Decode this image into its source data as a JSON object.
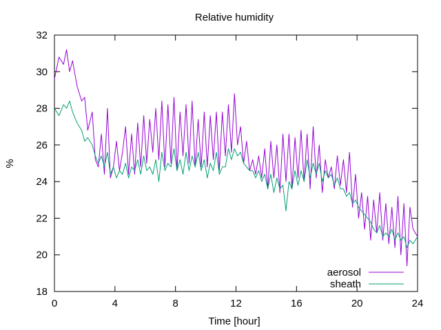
{
  "chart_data": {
    "type": "line",
    "title": "Relative humidity",
    "xlabel": "Time [hour]",
    "ylabel": "%",
    "xlim": [
      0,
      24
    ],
    "ylim": [
      18,
      32
    ],
    "xticks": [
      0,
      4,
      8,
      12,
      16,
      20,
      24
    ],
    "yticks": [
      18,
      20,
      22,
      24,
      26,
      28,
      30,
      32
    ],
    "grid": false,
    "legend_position": "bottom-right",
    "series": [
      {
        "name": "aerosol",
        "color": "#9400d3",
        "x": [
          0,
          0.3,
          0.6,
          0.8,
          1.0,
          1.2,
          1.5,
          1.8,
          2.0,
          2.2,
          2.5,
          2.7,
          2.9,
          3.1,
          3.3,
          3.5,
          3.7,
          3.9,
          4.1,
          4.3,
          4.5,
          4.7,
          4.9,
          5.1,
          5.3,
          5.5,
          5.7,
          5.9,
          6.1,
          6.3,
          6.5,
          6.7,
          6.9,
          7.1,
          7.3,
          7.5,
          7.7,
          7.9,
          8.1,
          8.3,
          8.5,
          8.7,
          8.9,
          9.1,
          9.3,
          9.5,
          9.7,
          9.9,
          10.1,
          10.3,
          10.5,
          10.7,
          10.9,
          11.1,
          11.3,
          11.5,
          11.7,
          11.9,
          12.1,
          12.3,
          12.5,
          12.7,
          12.9,
          13.1,
          13.3,
          13.5,
          13.7,
          13.9,
          14.1,
          14.3,
          14.5,
          14.7,
          14.9,
          15.1,
          15.3,
          15.5,
          15.7,
          15.9,
          16.1,
          16.3,
          16.5,
          16.7,
          16.9,
          17.1,
          17.3,
          17.5,
          17.7,
          17.9,
          18.1,
          18.3,
          18.5,
          18.7,
          18.9,
          19.1,
          19.3,
          19.5,
          19.7,
          19.9,
          20.1,
          20.3,
          20.5,
          20.7,
          20.9,
          21.1,
          21.3,
          21.5,
          21.7,
          21.9,
          22.1,
          22.3,
          22.5,
          22.7,
          22.9,
          23.1,
          23.3,
          23.5,
          23.7,
          24.0
        ],
        "y": [
          29.6,
          30.8,
          30.4,
          31.2,
          30.0,
          30.6,
          29.2,
          28.4,
          28.6,
          26.8,
          27.8,
          25.2,
          24.8,
          26.6,
          24.4,
          28.0,
          24.2,
          24.8,
          26.2,
          24.6,
          25.6,
          27.0,
          24.4,
          26.6,
          24.4,
          27.2,
          24.8,
          27.6,
          25.0,
          27.4,
          25.6,
          28.0,
          25.2,
          28.4,
          24.8,
          28.2,
          25.0,
          28.6,
          24.6,
          27.8,
          25.4,
          28.2,
          25.0,
          28.4,
          24.8,
          27.4,
          24.8,
          27.8,
          24.8,
          27.6,
          25.2,
          27.8,
          24.6,
          27.8,
          25.4,
          28.2,
          25.6,
          28.8,
          26.0,
          27.0,
          25.0,
          26.2,
          24.6,
          25.2,
          24.4,
          25.4,
          24.2,
          25.8,
          23.6,
          26.2,
          24.2,
          26.0,
          23.4,
          26.6,
          24.0,
          26.6,
          23.6,
          26.4,
          24.2,
          26.8,
          24.0,
          26.6,
          23.6,
          27.0,
          24.2,
          26.0,
          23.4,
          25.2,
          24.2,
          24.8,
          23.6,
          25.4,
          23.8,
          25.2,
          23.4,
          25.6,
          22.6,
          24.4,
          22.0,
          23.4,
          21.4,
          23.2,
          20.8,
          23.0,
          21.2,
          23.4,
          20.8,
          22.8,
          20.6,
          22.6,
          20.4,
          23.2,
          20.0,
          22.8,
          19.4,
          22.6,
          21.4,
          21.0
        ]
      },
      {
        "name": "sheath",
        "color": "#009e73",
        "x": [
          0,
          0.3,
          0.6,
          0.8,
          1.0,
          1.2,
          1.5,
          1.8,
          2.0,
          2.2,
          2.5,
          2.7,
          2.9,
          3.1,
          3.3,
          3.5,
          3.7,
          3.9,
          4.1,
          4.3,
          4.5,
          4.7,
          4.9,
          5.1,
          5.3,
          5.5,
          5.7,
          5.9,
          6.1,
          6.3,
          6.5,
          6.7,
          6.9,
          7.1,
          7.3,
          7.5,
          7.7,
          7.9,
          8.1,
          8.3,
          8.5,
          8.7,
          8.9,
          9.1,
          9.3,
          9.5,
          9.7,
          9.9,
          10.1,
          10.3,
          10.5,
          10.7,
          10.9,
          11.1,
          11.3,
          11.5,
          11.7,
          11.9,
          12.1,
          12.3,
          12.5,
          12.7,
          12.9,
          13.1,
          13.3,
          13.5,
          13.7,
          13.9,
          14.1,
          14.3,
          14.5,
          14.7,
          14.9,
          15.1,
          15.3,
          15.5,
          15.7,
          15.9,
          16.1,
          16.3,
          16.5,
          16.7,
          16.9,
          17.1,
          17.3,
          17.5,
          17.7,
          17.9,
          18.1,
          18.3,
          18.5,
          18.7,
          18.9,
          19.1,
          19.3,
          19.5,
          19.7,
          19.9,
          20.1,
          20.3,
          20.5,
          20.7,
          20.9,
          21.1,
          21.3,
          21.5,
          21.7,
          21.9,
          22.1,
          22.3,
          22.5,
          22.7,
          22.9,
          23.1,
          23.3,
          23.5,
          23.7,
          24.0
        ],
        "y": [
          28.0,
          27.6,
          28.2,
          28.0,
          28.4,
          27.8,
          27.2,
          26.8,
          26.2,
          26.4,
          26.0,
          25.4,
          25.0,
          25.4,
          24.8,
          25.6,
          24.4,
          24.8,
          24.2,
          24.6,
          24.4,
          25.0,
          24.2,
          24.8,
          24.6,
          25.2,
          24.4,
          25.4,
          24.6,
          24.8,
          24.4,
          25.2,
          24.0,
          25.6,
          24.6,
          25.0,
          24.8,
          25.8,
          24.6,
          25.2,
          24.4,
          25.6,
          24.6,
          25.4,
          24.8,
          25.6,
          24.6,
          25.2,
          24.2,
          25.0,
          24.6,
          25.6,
          24.4,
          24.8,
          24.8,
          25.8,
          25.2,
          25.8,
          25.4,
          25.6,
          25.0,
          24.8,
          24.6,
          24.6,
          24.2,
          24.6,
          24.0,
          24.4,
          23.6,
          24.4,
          23.4,
          24.2,
          23.6,
          23.8,
          22.4,
          24.0,
          23.6,
          24.6,
          23.8,
          24.6,
          24.0,
          25.2,
          24.2,
          25.0,
          24.4,
          25.0,
          24.0,
          24.6,
          24.2,
          24.4,
          23.8,
          24.2,
          23.6,
          23.6,
          23.2,
          23.4,
          22.8,
          23.0,
          22.6,
          22.4,
          22.2,
          22.0,
          21.8,
          21.4,
          21.2,
          21.6,
          21.0,
          21.2,
          21.0,
          21.4,
          20.8,
          21.2,
          20.8,
          21.0,
          20.4,
          20.8,
          20.6,
          21.0
        ]
      }
    ]
  }
}
